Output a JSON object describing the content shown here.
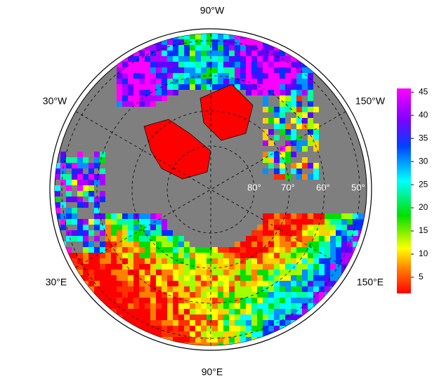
{
  "map": {
    "longitude_labels": [
      "90°W",
      "30°W",
      "150°W",
      "30°E",
      "150°E",
      "90°E"
    ],
    "latitude_labels": [
      "80°",
      "70°",
      "60°",
      "50°"
    ],
    "colorbar": {
      "lim": [
        1.5,
        45.8
      ],
      "ticks": [
        5,
        10,
        15,
        20,
        25,
        30,
        35,
        40,
        45
      ]
    }
  }
}
